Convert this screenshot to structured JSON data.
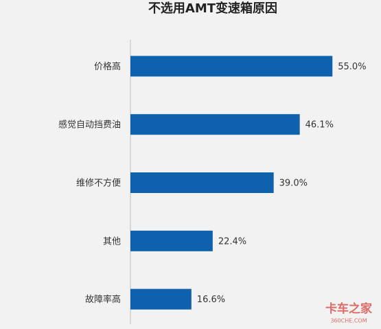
{
  "chart_data": {
    "type": "hbar",
    "title": "不选用AMT变速箱原因",
    "categories": [
      "价格高",
      "感觉自动挡费油",
      "维修不方便",
      "其他",
      "故障率高"
    ],
    "values": [
      55.0,
      46.1,
      39.0,
      22.4,
      16.6
    ],
    "value_labels": [
      "55.0%",
      "46.1%",
      "39.0%",
      "22.4%",
      "16.6%"
    ],
    "color": "#0e62ad",
    "watermark": [
      "卡车之家",
      "360CHE.COM"
    ]
  }
}
